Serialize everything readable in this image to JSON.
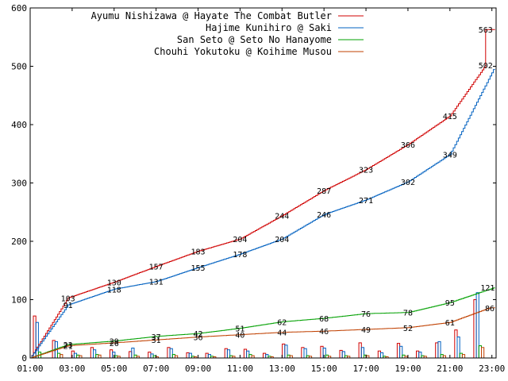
{
  "chart_data": {
    "type": "line",
    "x_ticks": [
      "01:00",
      "03:00",
      "05:00",
      "07:00",
      "09:00",
      "11:00",
      "13:00",
      "15:00",
      "17:00",
      "19:00",
      "21:00",
      "23:00"
    ],
    "y_ticks": [
      "0",
      "100",
      "200",
      "300",
      "400",
      "500",
      "600"
    ],
    "ylim": [
      0,
      600
    ],
    "xlim_hours": [
      1,
      23.2
    ],
    "grid": false,
    "legend_position": "top-left",
    "series": [
      {
        "name": "Ayumu Nishizawa @ Hayate The Combat Butler",
        "color": "#d00000",
        "labels": [
          {
            "hour": 2.8,
            "value": 103,
            "text": "103"
          },
          {
            "hour": 5.0,
            "value": 130,
            "text": "130"
          },
          {
            "hour": 7.0,
            "value": 157,
            "text": "157"
          },
          {
            "hour": 9.0,
            "value": 183,
            "text": "183"
          },
          {
            "hour": 11.0,
            "value": 204,
            "text": "204"
          },
          {
            "hour": 13.0,
            "value": 244,
            "text": "244"
          },
          {
            "hour": 15.0,
            "value": 287,
            "text": "287"
          },
          {
            "hour": 17.0,
            "value": 323,
            "text": "323"
          },
          {
            "hour": 19.0,
            "value": 366,
            "text": "366"
          },
          {
            "hour": 21.0,
            "value": 415,
            "text": "415"
          },
          {
            "hour": 22.7,
            "value": 502,
            "text": "502"
          },
          {
            "hour": 22.7,
            "value": 563,
            "text": "563"
          }
        ]
      },
      {
        "name": "Hajime Kunihiro @ Saki",
        "color": "#0060c0",
        "labels": [
          {
            "hour": 2.8,
            "value": 91,
            "text": "91"
          },
          {
            "hour": 5.0,
            "value": 118,
            "text": "118"
          },
          {
            "hour": 7.0,
            "value": 131,
            "text": "131"
          },
          {
            "hour": 9.0,
            "value": 155,
            "text": "155"
          },
          {
            "hour": 11.0,
            "value": 178,
            "text": "178"
          },
          {
            "hour": 13.0,
            "value": 204,
            "text": "204"
          },
          {
            "hour": 15.0,
            "value": 246,
            "text": "246"
          },
          {
            "hour": 17.0,
            "value": 271,
            "text": "271"
          },
          {
            "hour": 19.0,
            "value": 302,
            "text": "302"
          },
          {
            "hour": 21.0,
            "value": 349,
            "text": "349"
          },
          {
            "hour": 22.8,
            "value": 121,
            "text": "121"
          }
        ]
      },
      {
        "name": "San Seto @ Seto No Hanayome",
        "color": "#00a000",
        "labels": [
          {
            "hour": 2.8,
            "value": 23,
            "text": "23"
          },
          {
            "hour": 5.0,
            "value": 29,
            "text": "29"
          },
          {
            "hour": 7.0,
            "value": 37,
            "text": "37"
          },
          {
            "hour": 9.0,
            "value": 42,
            "text": "42"
          },
          {
            "hour": 11.0,
            "value": 51,
            "text": "51"
          },
          {
            "hour": 13.0,
            "value": 62,
            "text": "62"
          },
          {
            "hour": 15.0,
            "value": 68,
            "text": "68"
          },
          {
            "hour": 17.0,
            "value": 76,
            "text": "76"
          },
          {
            "hour": 19.0,
            "value": 78,
            "text": "78"
          },
          {
            "hour": 21.0,
            "value": 95,
            "text": "95"
          }
        ]
      },
      {
        "name": "Chouhi Yokutoku @ Koihime Musou",
        "color": "#c04000",
        "labels": [
          {
            "hour": 2.8,
            "value": 21,
            "text": "21"
          },
          {
            "hour": 5.0,
            "value": 26,
            "text": "26"
          },
          {
            "hour": 7.0,
            "value": 31,
            "text": "31"
          },
          {
            "hour": 9.0,
            "value": 36,
            "text": "36"
          },
          {
            "hour": 11.0,
            "value": 40,
            "text": "40"
          },
          {
            "hour": 13.0,
            "value": 44,
            "text": "44"
          },
          {
            "hour": 15.0,
            "value": 46,
            "text": "46"
          },
          {
            "hour": 17.0,
            "value": 49,
            "text": "49"
          },
          {
            "hour": 19.0,
            "value": 52,
            "text": "52"
          },
          {
            "hour": 21.0,
            "value": 61,
            "text": "61"
          },
          {
            "hour": 22.9,
            "value": 86,
            "text": "86"
          }
        ]
      }
    ]
  }
}
